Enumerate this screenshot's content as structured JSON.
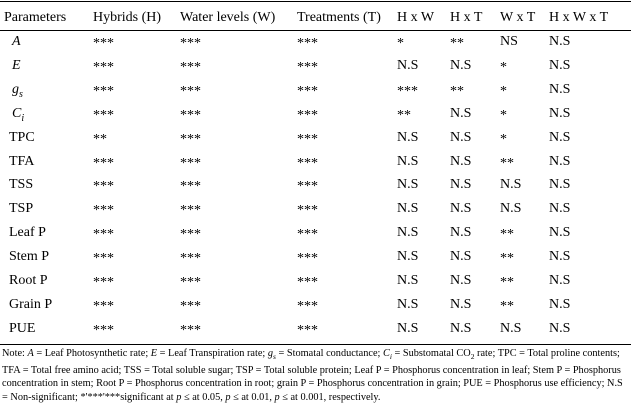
{
  "table": {
    "headers": [
      "Parameters",
      "Hybrids (H)",
      "Water levels (W)",
      "Treatments (T)",
      "H x W",
      "H x T",
      "W x T",
      "H x W x T"
    ],
    "rows": [
      {
        "param": "A",
        "italic": true,
        "cells": [
          "***",
          "***",
          "***",
          "*",
          "**",
          "NS",
          "N.S"
        ]
      },
      {
        "param": "E",
        "italic": true,
        "cells": [
          "***",
          "***",
          "***",
          "N.S",
          "N.S",
          "*",
          "N.S"
        ]
      },
      {
        "param": "g",
        "param_sub": "s",
        "italic": true,
        "cells": [
          "***",
          "***",
          "***",
          "***",
          "**",
          "*",
          "N.S"
        ]
      },
      {
        "param": "C",
        "param_sub": "i",
        "italic": true,
        "cells": [
          "***",
          "***",
          "***",
          "**",
          "N.S",
          "*",
          "N.S"
        ]
      },
      {
        "param": "TPC",
        "italic": false,
        "cells": [
          "**",
          "***",
          "***",
          "N.S",
          "N.S",
          "*",
          "N.S"
        ]
      },
      {
        "param": "TFA",
        "italic": false,
        "cells": [
          "***",
          "***",
          "***",
          "N.S",
          "N.S",
          "**",
          "N.S"
        ]
      },
      {
        "param": "TSS",
        "italic": false,
        "cells": [
          "***",
          "***",
          "***",
          "N.S",
          "N.S",
          "N.S",
          "N.S"
        ]
      },
      {
        "param": "TSP",
        "italic": false,
        "cells": [
          "***",
          "***",
          "***",
          "N.S",
          "N.S",
          "N.S",
          "N.S"
        ]
      },
      {
        "param": "Leaf P",
        "italic": false,
        "cells": [
          "***",
          "***",
          "***",
          "N.S",
          "N.S",
          "**",
          "N.S"
        ]
      },
      {
        "param": "Stem P",
        "italic": false,
        "cells": [
          "***",
          "***",
          "***",
          "N.S",
          "N.S",
          "**",
          "N.S"
        ]
      },
      {
        "param": "Root P",
        "italic": false,
        "cells": [
          "***",
          "***",
          "***",
          "N.S",
          "N.S",
          "**",
          "N.S"
        ]
      },
      {
        "param": "Grain P",
        "italic": false,
        "cells": [
          "***",
          "***",
          "***",
          "N.S",
          "N.S",
          "**",
          "N.S"
        ]
      },
      {
        "param": "PUE",
        "italic": false,
        "cells": [
          "***",
          "***",
          "***",
          "N.S",
          "N.S",
          "N.S",
          "N.S"
        ]
      }
    ]
  },
  "note": {
    "segments": [
      {
        "t": "Note: ",
        "i": false
      },
      {
        "t": "A",
        "i": true
      },
      {
        "t": " = Leaf Photosynthetic rate; ",
        "i": false
      },
      {
        "t": "E",
        "i": true
      },
      {
        "t": " = Leaf Transpiration rate; ",
        "i": false
      },
      {
        "t": "g",
        "i": true,
        "sub": "s"
      },
      {
        "t": " = Stomatal conductance; ",
        "i": false
      },
      {
        "t": "C",
        "i": true,
        "sub": "i"
      },
      {
        "t": " = Substomatal CO",
        "i": false,
        "sub": "2"
      },
      {
        "t": " rate; TPC = Total proline contents; TFA = Total free amino acid; TSS = Total soluble sugar; TSP = Total soluble protein; Leaf P = Phosphorus concentration in leaf; Stem P = Phosphorus concentration in stem; Root P = Phosphorus concentration in root; grain P = Phosphorus concentration in grain; PUE = Phosphorus use efficiency; N.S = Non-significant; *'***'***significant at ",
        "i": false
      },
      {
        "t": "p",
        "i": true
      },
      {
        "t": " ≤ at 0.05, ",
        "i": false
      },
      {
        "t": "p",
        "i": true
      },
      {
        "t": " ≤ at 0.01, ",
        "i": false
      },
      {
        "t": "p",
        "i": true
      },
      {
        "t": " ≤ at 0.001, respectively.",
        "i": false
      }
    ]
  }
}
